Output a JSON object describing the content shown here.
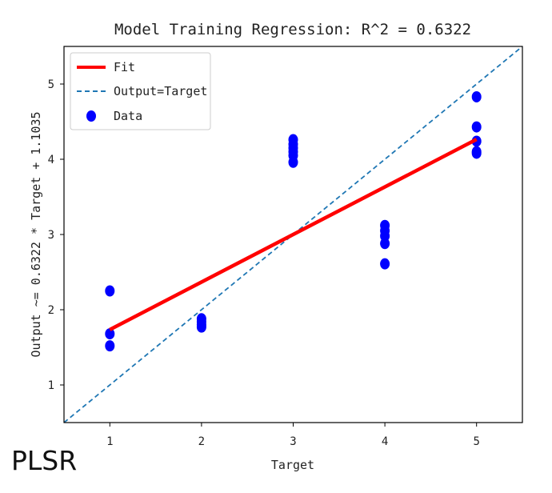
{
  "chart_data": {
    "type": "scatter",
    "title": "Model Training Regression: R^2 = 0.6322",
    "xlabel": "Target",
    "ylabel": "Output ~= 0.6322 * Target + 1.1035",
    "xlim": [
      0.5,
      5.5
    ],
    "ylim": [
      0.5,
      5.5
    ],
    "x_ticks": [
      1,
      2,
      3,
      4,
      5
    ],
    "y_ticks": [
      1,
      2,
      3,
      4,
      5
    ],
    "grid": false,
    "legend_position": "top-left",
    "series": [
      {
        "name": "Data",
        "kind": "scatter",
        "color": "#0000ff",
        "x": [
          1,
          1,
          1,
          2,
          2,
          2,
          2,
          3,
          3,
          3,
          3,
          3,
          3,
          4,
          4,
          4,
          4,
          4,
          5,
          5,
          5,
          5,
          5
        ],
        "y": [
          2.25,
          1.68,
          1.52,
          1.88,
          1.84,
          1.8,
          1.77,
          4.26,
          4.2,
          4.15,
          4.1,
          4.05,
          3.96,
          3.12,
          3.05,
          2.98,
          2.88,
          2.61,
          4.83,
          4.43,
          4.24,
          4.1,
          4.08
        ]
      },
      {
        "name": "Fit",
        "kind": "line",
        "color": "#ff0000",
        "slope": 0.6322,
        "intercept": 1.1035,
        "x_range": [
          1,
          5
        ]
      },
      {
        "name": "Output=Target",
        "kind": "dashed-line",
        "color": "#1f77b4",
        "slope": 1,
        "intercept": 0,
        "x_range": [
          0.5,
          5.5
        ]
      }
    ]
  },
  "corner_label": "PLSR"
}
